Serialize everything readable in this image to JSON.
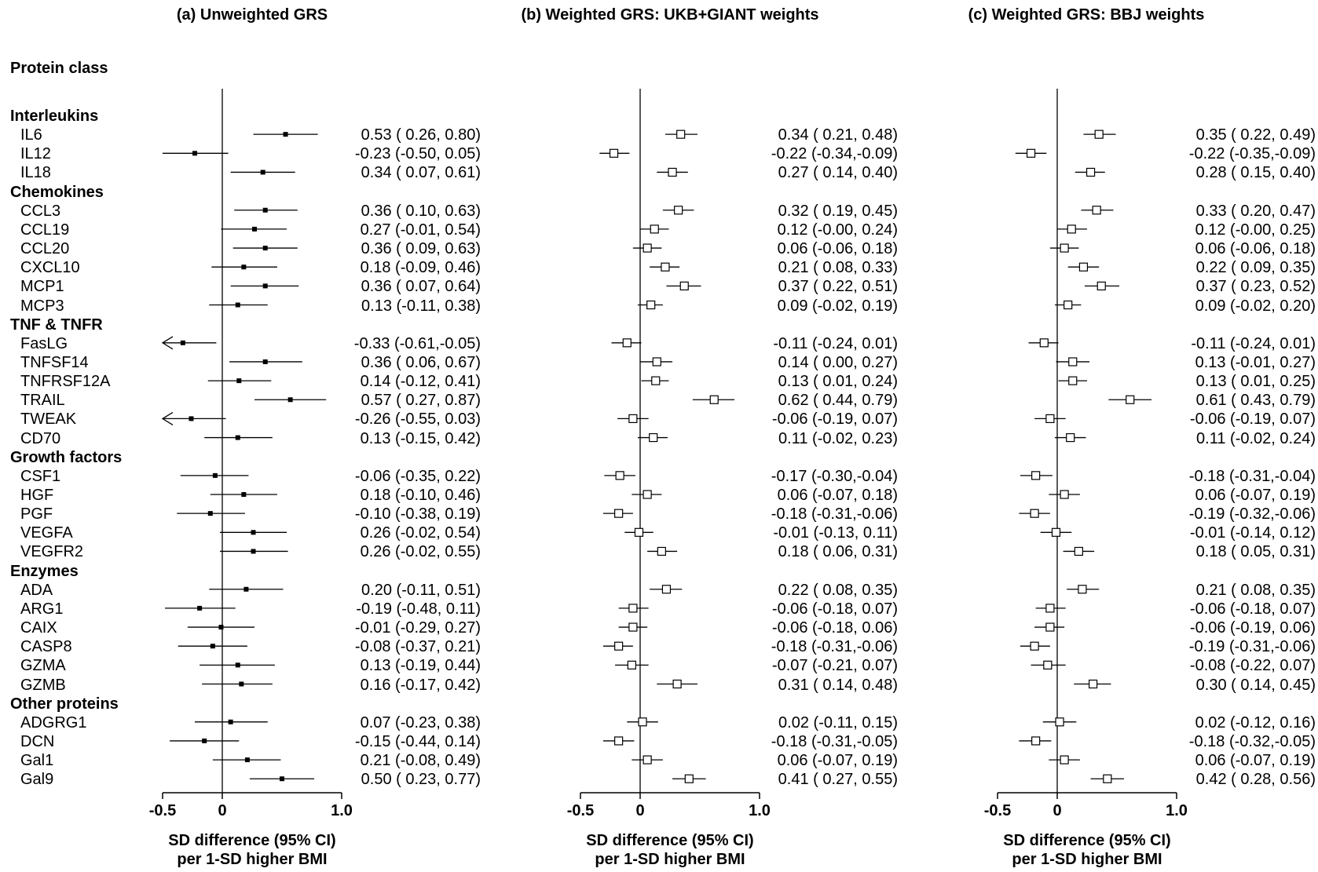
{
  "section_heading": "Protein class",
  "chart_data": {
    "type": "forest",
    "xlim": [
      -0.5,
      1.0
    ],
    "ticks": [
      -0.5,
      0,
      1.0
    ],
    "tick_labels": [
      "-0.5",
      "0",
      "1.0"
    ],
    "xlabel_line1": "SD difference (95% CI)",
    "xlabel_line2": "per 1-SD higher BMI",
    "reference_line": 0,
    "rows": [
      {
        "group": "Interleukins"
      },
      {
        "name": "IL6"
      },
      {
        "name": "IL12"
      },
      {
        "name": "IL18"
      },
      {
        "group": "Chemokines"
      },
      {
        "name": "CCL3"
      },
      {
        "name": "CCL19"
      },
      {
        "name": "CCL20"
      },
      {
        "name": "CXCL10"
      },
      {
        "name": "MCP1"
      },
      {
        "name": "MCP3"
      },
      {
        "group": "TNF & TNFR"
      },
      {
        "name": "FasLG"
      },
      {
        "name": "TNFSF14"
      },
      {
        "name": "TNFRSF12A"
      },
      {
        "name": "TRAIL"
      },
      {
        "name": "TWEAK"
      },
      {
        "name": "CD70"
      },
      {
        "group": "Growth factors"
      },
      {
        "name": "CSF1"
      },
      {
        "name": "HGF"
      },
      {
        "name": "PGF"
      },
      {
        "name": "VEGFA"
      },
      {
        "name": "VEGFR2"
      },
      {
        "group": "Enzymes"
      },
      {
        "name": "ADA"
      },
      {
        "name": "ARG1"
      },
      {
        "name": "CAIX"
      },
      {
        "name": "CASP8"
      },
      {
        "name": "GZMA"
      },
      {
        "name": "GZMB"
      },
      {
        "group": "Other proteins"
      },
      {
        "name": "ADGRG1"
      },
      {
        "name": "DCN"
      },
      {
        "name": "Gal1"
      },
      {
        "name": "Gal9"
      }
    ],
    "panels": [
      {
        "title": "(a) Unweighted GRS",
        "marker": "filled",
        "estimates": [
          [
            0.53,
            0.26,
            0.8
          ],
          [
            -0.23,
            -0.5,
            0.05
          ],
          [
            0.34,
            0.07,
            0.61
          ],
          [
            0.36,
            0.1,
            0.63
          ],
          [
            0.27,
            -0.01,
            0.54
          ],
          [
            0.36,
            0.09,
            0.63
          ],
          [
            0.18,
            -0.09,
            0.46
          ],
          [
            0.36,
            0.07,
            0.64
          ],
          [
            0.13,
            -0.11,
            0.38
          ],
          [
            -0.33,
            -0.61,
            -0.05
          ],
          [
            0.36,
            0.06,
            0.67
          ],
          [
            0.14,
            -0.12,
            0.41
          ],
          [
            0.57,
            0.27,
            0.87
          ],
          [
            -0.26,
            -0.55,
            0.03
          ],
          [
            0.13,
            -0.15,
            0.42
          ],
          [
            -0.06,
            -0.35,
            0.22
          ],
          [
            0.18,
            -0.1,
            0.46
          ],
          [
            -0.1,
            -0.38,
            0.19
          ],
          [
            0.26,
            -0.02,
            0.54
          ],
          [
            0.26,
            -0.02,
            0.55
          ],
          [
            0.2,
            -0.11,
            0.51
          ],
          [
            -0.19,
            -0.48,
            0.11
          ],
          [
            -0.01,
            -0.29,
            0.27
          ],
          [
            -0.08,
            -0.37,
            0.21
          ],
          [
            0.13,
            -0.19,
            0.44
          ],
          [
            0.16,
            -0.17,
            0.42
          ],
          [
            0.07,
            -0.23,
            0.38
          ],
          [
            -0.15,
            -0.44,
            0.14
          ],
          [
            0.21,
            -0.08,
            0.49
          ],
          [
            0.5,
            0.23,
            0.77
          ]
        ],
        "ci_text": [
          " 0.53 ( 0.26, 0.80)",
          "-0.23 (-0.50, 0.05)",
          " 0.34 ( 0.07, 0.61)",
          " 0.36 ( 0.10, 0.63)",
          " 0.27 (-0.01, 0.54)",
          " 0.36 ( 0.09, 0.63)",
          " 0.18 (-0.09, 0.46)",
          " 0.36 ( 0.07, 0.64)",
          " 0.13 (-0.11, 0.38)",
          "-0.33 (-0.61,-0.05)",
          " 0.36 ( 0.06, 0.67)",
          " 0.14 (-0.12, 0.41)",
          " 0.57 ( 0.27, 0.87)",
          "-0.26 (-0.55, 0.03)",
          " 0.13 (-0.15, 0.42)",
          "-0.06 (-0.35, 0.22)",
          " 0.18 (-0.10, 0.46)",
          "-0.10 (-0.38, 0.19)",
          " 0.26 (-0.02, 0.54)",
          " 0.26 (-0.02, 0.55)",
          " 0.20 (-0.11, 0.51)",
          "-0.19 (-0.48, 0.11)",
          "-0.01 (-0.29, 0.27)",
          "-0.08 (-0.37, 0.21)",
          " 0.13 (-0.19, 0.44)",
          " 0.16 (-0.17, 0.42)",
          " 0.07 (-0.23, 0.38)",
          "-0.15 (-0.44, 0.14)",
          " 0.21 (-0.08, 0.49)",
          " 0.50 ( 0.23, 0.77)"
        ]
      },
      {
        "title": "(b) Weighted GRS: UKB+GIANT weights",
        "marker": "open",
        "estimates": [
          [
            0.34,
            0.21,
            0.48
          ],
          [
            -0.22,
            -0.34,
            -0.09
          ],
          [
            0.27,
            0.14,
            0.4
          ],
          [
            0.32,
            0.19,
            0.45
          ],
          [
            0.12,
            -0.0,
            0.24
          ],
          [
            0.06,
            -0.06,
            0.18
          ],
          [
            0.21,
            0.08,
            0.33
          ],
          [
            0.37,
            0.22,
            0.51
          ],
          [
            0.09,
            -0.02,
            0.19
          ],
          [
            -0.11,
            -0.24,
            0.01
          ],
          [
            0.14,
            0.0,
            0.27
          ],
          [
            0.13,
            0.01,
            0.24
          ],
          [
            0.62,
            0.44,
            0.79
          ],
          [
            -0.06,
            -0.19,
            0.07
          ],
          [
            0.11,
            -0.02,
            0.23
          ],
          [
            -0.17,
            -0.3,
            -0.04
          ],
          [
            0.06,
            -0.07,
            0.18
          ],
          [
            -0.18,
            -0.31,
            -0.06
          ],
          [
            -0.01,
            -0.13,
            0.11
          ],
          [
            0.18,
            0.06,
            0.31
          ],
          [
            0.22,
            0.08,
            0.35
          ],
          [
            -0.06,
            -0.18,
            0.07
          ],
          [
            -0.06,
            -0.18,
            0.06
          ],
          [
            -0.18,
            -0.31,
            -0.06
          ],
          [
            -0.07,
            -0.21,
            0.07
          ],
          [
            0.31,
            0.14,
            0.48
          ],
          [
            0.02,
            -0.11,
            0.15
          ],
          [
            -0.18,
            -0.31,
            -0.05
          ],
          [
            0.06,
            -0.07,
            0.19
          ],
          [
            0.41,
            0.27,
            0.55
          ]
        ],
        "ci_text": [
          " 0.34 ( 0.21, 0.48)",
          "-0.22 (-0.34,-0.09)",
          " 0.27 ( 0.14, 0.40)",
          " 0.32 ( 0.19, 0.45)",
          " 0.12 (-0.00, 0.24)",
          " 0.06 (-0.06, 0.18)",
          " 0.21 ( 0.08, 0.33)",
          " 0.37 ( 0.22, 0.51)",
          " 0.09 (-0.02, 0.19)",
          "-0.11 (-0.24, 0.01)",
          " 0.14 ( 0.00, 0.27)",
          " 0.13 ( 0.01, 0.24)",
          " 0.62 ( 0.44, 0.79)",
          "-0.06 (-0.19, 0.07)",
          " 0.11 (-0.02, 0.23)",
          "-0.17 (-0.30,-0.04)",
          " 0.06 (-0.07, 0.18)",
          "-0.18 (-0.31,-0.06)",
          "-0.01 (-0.13, 0.11)",
          " 0.18 ( 0.06, 0.31)",
          " 0.22 ( 0.08, 0.35)",
          "-0.06 (-0.18, 0.07)",
          "-0.06 (-0.18, 0.06)",
          "-0.18 (-0.31,-0.06)",
          "-0.07 (-0.21, 0.07)",
          " 0.31 ( 0.14, 0.48)",
          " 0.02 (-0.11, 0.15)",
          "-0.18 (-0.31,-0.05)",
          " 0.06 (-0.07, 0.19)",
          " 0.41 ( 0.27, 0.55)"
        ]
      },
      {
        "title": "(c) Weighted GRS: BBJ weights",
        "marker": "open",
        "estimates": [
          [
            0.35,
            0.22,
            0.49
          ],
          [
            -0.22,
            -0.35,
            -0.09
          ],
          [
            0.28,
            0.15,
            0.4
          ],
          [
            0.33,
            0.2,
            0.47
          ],
          [
            0.12,
            -0.0,
            0.25
          ],
          [
            0.06,
            -0.06,
            0.18
          ],
          [
            0.22,
            0.09,
            0.35
          ],
          [
            0.37,
            0.23,
            0.52
          ],
          [
            0.09,
            -0.02,
            0.2
          ],
          [
            -0.11,
            -0.24,
            0.01
          ],
          [
            0.13,
            -0.01,
            0.27
          ],
          [
            0.13,
            0.01,
            0.25
          ],
          [
            0.61,
            0.43,
            0.79
          ],
          [
            -0.06,
            -0.19,
            0.07
          ],
          [
            0.11,
            -0.02,
            0.24
          ],
          [
            -0.18,
            -0.31,
            -0.04
          ],
          [
            0.06,
            -0.07,
            0.19
          ],
          [
            -0.19,
            -0.32,
            -0.06
          ],
          [
            -0.01,
            -0.14,
            0.12
          ],
          [
            0.18,
            0.05,
            0.31
          ],
          [
            0.21,
            0.08,
            0.35
          ],
          [
            -0.06,
            -0.18,
            0.07
          ],
          [
            -0.06,
            -0.19,
            0.06
          ],
          [
            -0.19,
            -0.31,
            -0.06
          ],
          [
            -0.08,
            -0.22,
            0.07
          ],
          [
            0.3,
            0.14,
            0.45
          ],
          [
            0.02,
            -0.12,
            0.16
          ],
          [
            -0.18,
            -0.32,
            -0.05
          ],
          [
            0.06,
            -0.07,
            0.19
          ],
          [
            0.42,
            0.28,
            0.56
          ]
        ],
        "ci_text": [
          " 0.35 ( 0.22, 0.49)",
          "-0.22 (-0.35,-0.09)",
          " 0.28 ( 0.15, 0.40)",
          " 0.33 ( 0.20, 0.47)",
          " 0.12 (-0.00, 0.25)",
          " 0.06 (-0.06, 0.18)",
          " 0.22 ( 0.09, 0.35)",
          " 0.37 ( 0.23, 0.52)",
          " 0.09 (-0.02, 0.20)",
          "-0.11 (-0.24, 0.01)",
          " 0.13 (-0.01, 0.27)",
          " 0.13 ( 0.01, 0.25)",
          " 0.61 ( 0.43, 0.79)",
          "-0.06 (-0.19, 0.07)",
          " 0.11 (-0.02, 0.24)",
          "-0.18 (-0.31,-0.04)",
          " 0.06 (-0.07, 0.19)",
          "-0.19 (-0.32,-0.06)",
          "-0.01 (-0.14, 0.12)",
          " 0.18 ( 0.05, 0.31)",
          " 0.21 ( 0.08, 0.35)",
          "-0.06 (-0.18, 0.07)",
          "-0.06 (-0.19, 0.06)",
          "-0.19 (-0.31,-0.06)",
          "-0.08 (-0.22, 0.07)",
          " 0.30 ( 0.14, 0.45)",
          " 0.02 (-0.12, 0.16)",
          "-0.18 (-0.32,-0.05)",
          " 0.06 (-0.07, 0.19)",
          " 0.42 ( 0.28, 0.56)"
        ]
      }
    ]
  }
}
